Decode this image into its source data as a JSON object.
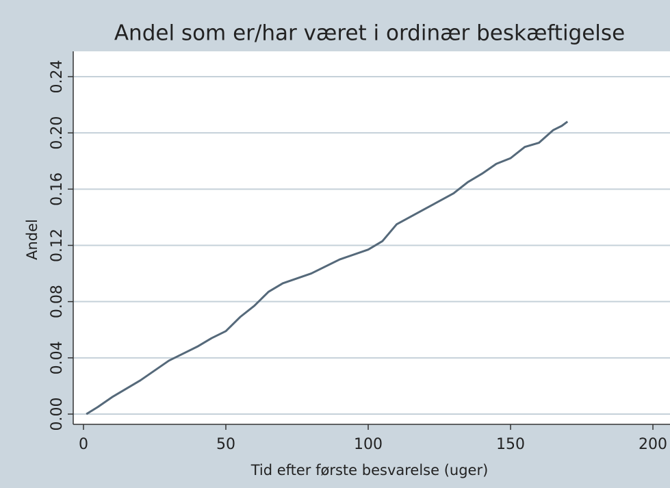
{
  "chart_data": {
    "type": "line",
    "title": "Andel som er/har været i ordinær beskæftigelse",
    "x_label": "Tid efter første besvarelse (uger)",
    "y_label": "Andel",
    "x": [
      1,
      5,
      10,
      20,
      30,
      40,
      45,
      50,
      55,
      60,
      65,
      70,
      80,
      90,
      100,
      105,
      110,
      120,
      130,
      135,
      140,
      145,
      150,
      155,
      160,
      165,
      168,
      170
    ],
    "series": [
      {
        "name": "Andel",
        "color": "#55697a",
        "values": [
          0.0,
          0.005,
          0.012,
          0.024,
          0.038,
          0.048,
          0.054,
          0.059,
          0.069,
          0.077,
          0.087,
          0.093,
          0.1,
          0.11,
          0.117,
          0.123,
          0.135,
          0.146,
          0.157,
          0.165,
          0.171,
          0.178,
          0.182,
          0.19,
          0.193,
          0.202,
          0.205,
          0.208
        ]
      }
    ],
    "xlim": [
      -3.6,
      206
    ],
    "ylim": [
      -0.0073,
      0.258
    ],
    "xticks": [
      0,
      50,
      100,
      150,
      200
    ],
    "yticks": [
      {
        "value": 0,
        "label": "0.00"
      },
      {
        "value": 0.04,
        "label": "0.04"
      },
      {
        "value": 0.08,
        "label": "0.08"
      },
      {
        "value": 0.12,
        "label": "0.12"
      },
      {
        "value": 0.16,
        "label": "0.16"
      },
      {
        "value": 0.2,
        "label": "0.20"
      },
      {
        "value": 0.24,
        "label": "0.24"
      }
    ],
    "grid": true
  }
}
